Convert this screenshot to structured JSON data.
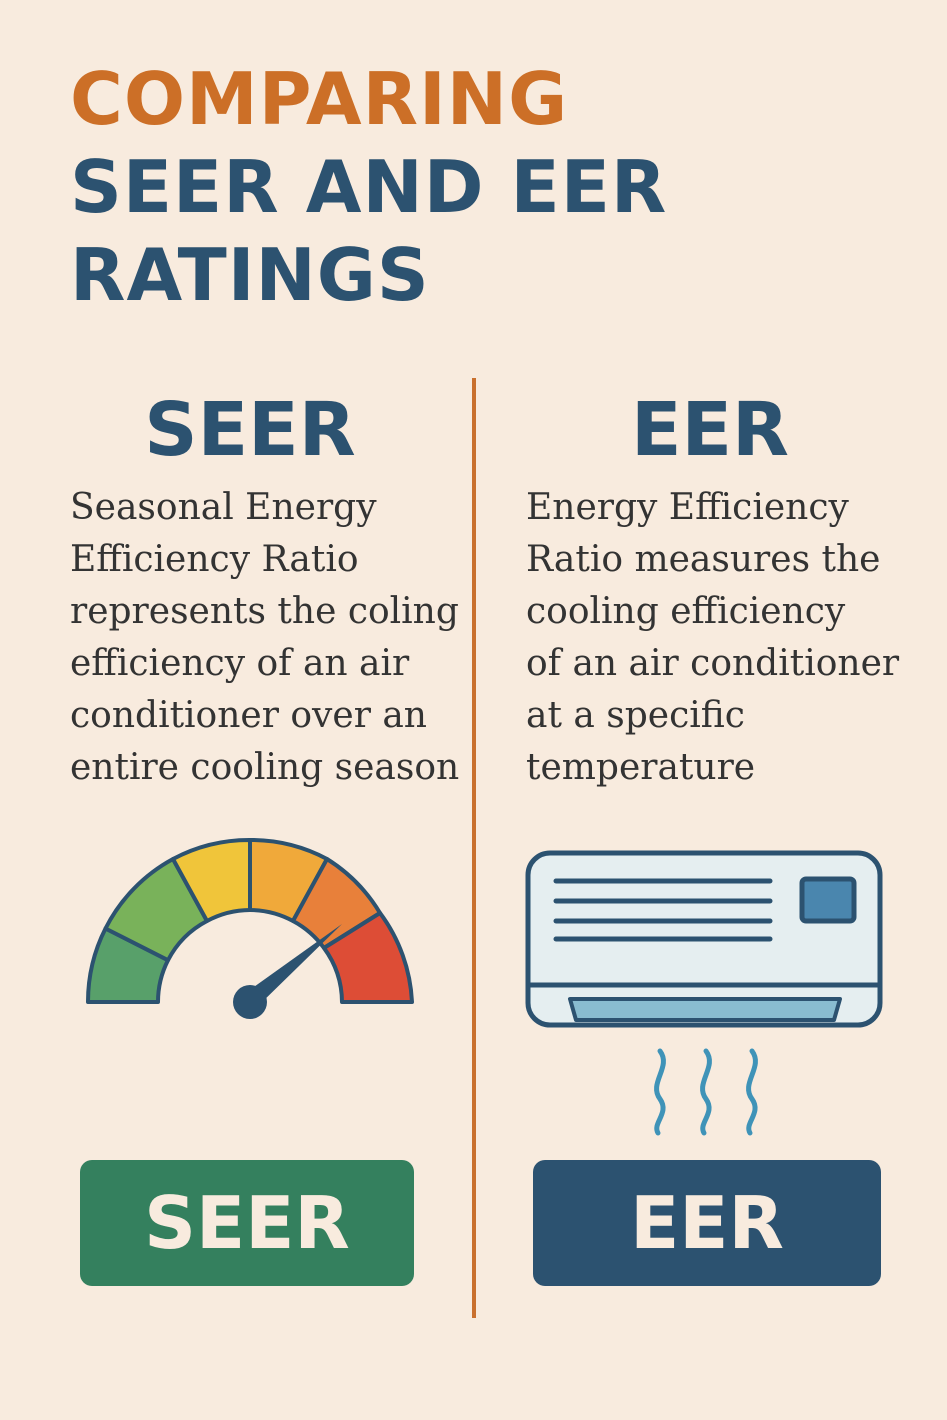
{
  "header": {
    "title_line1": "COMPARING",
    "title_line2": "SEER AND EER",
    "title_line3": "RATINGS"
  },
  "columns": {
    "left": {
      "heading": "SEER",
      "description": "Seasonal Energy\nEfficiency Ratio\nrepresents the coling\nefficiency of an air\nconditioner over an\nentire cooling season",
      "icon": "gauge-icon",
      "badge": "SEER",
      "badge_color": "#34805e"
    },
    "right": {
      "heading": "EER",
      "description": "Energy Efficiency\nRatio measures the\ncooling efficiency\nof an air conditioner\nat a specific\ntemperature",
      "icon": "air-conditioner-icon",
      "badge": "EER",
      "badge_color": "#2c5270"
    }
  },
  "colors": {
    "background": "#f8ebde",
    "accent_orange": "#cc6f27",
    "navy": "#2c5270",
    "green": "#34805e"
  }
}
